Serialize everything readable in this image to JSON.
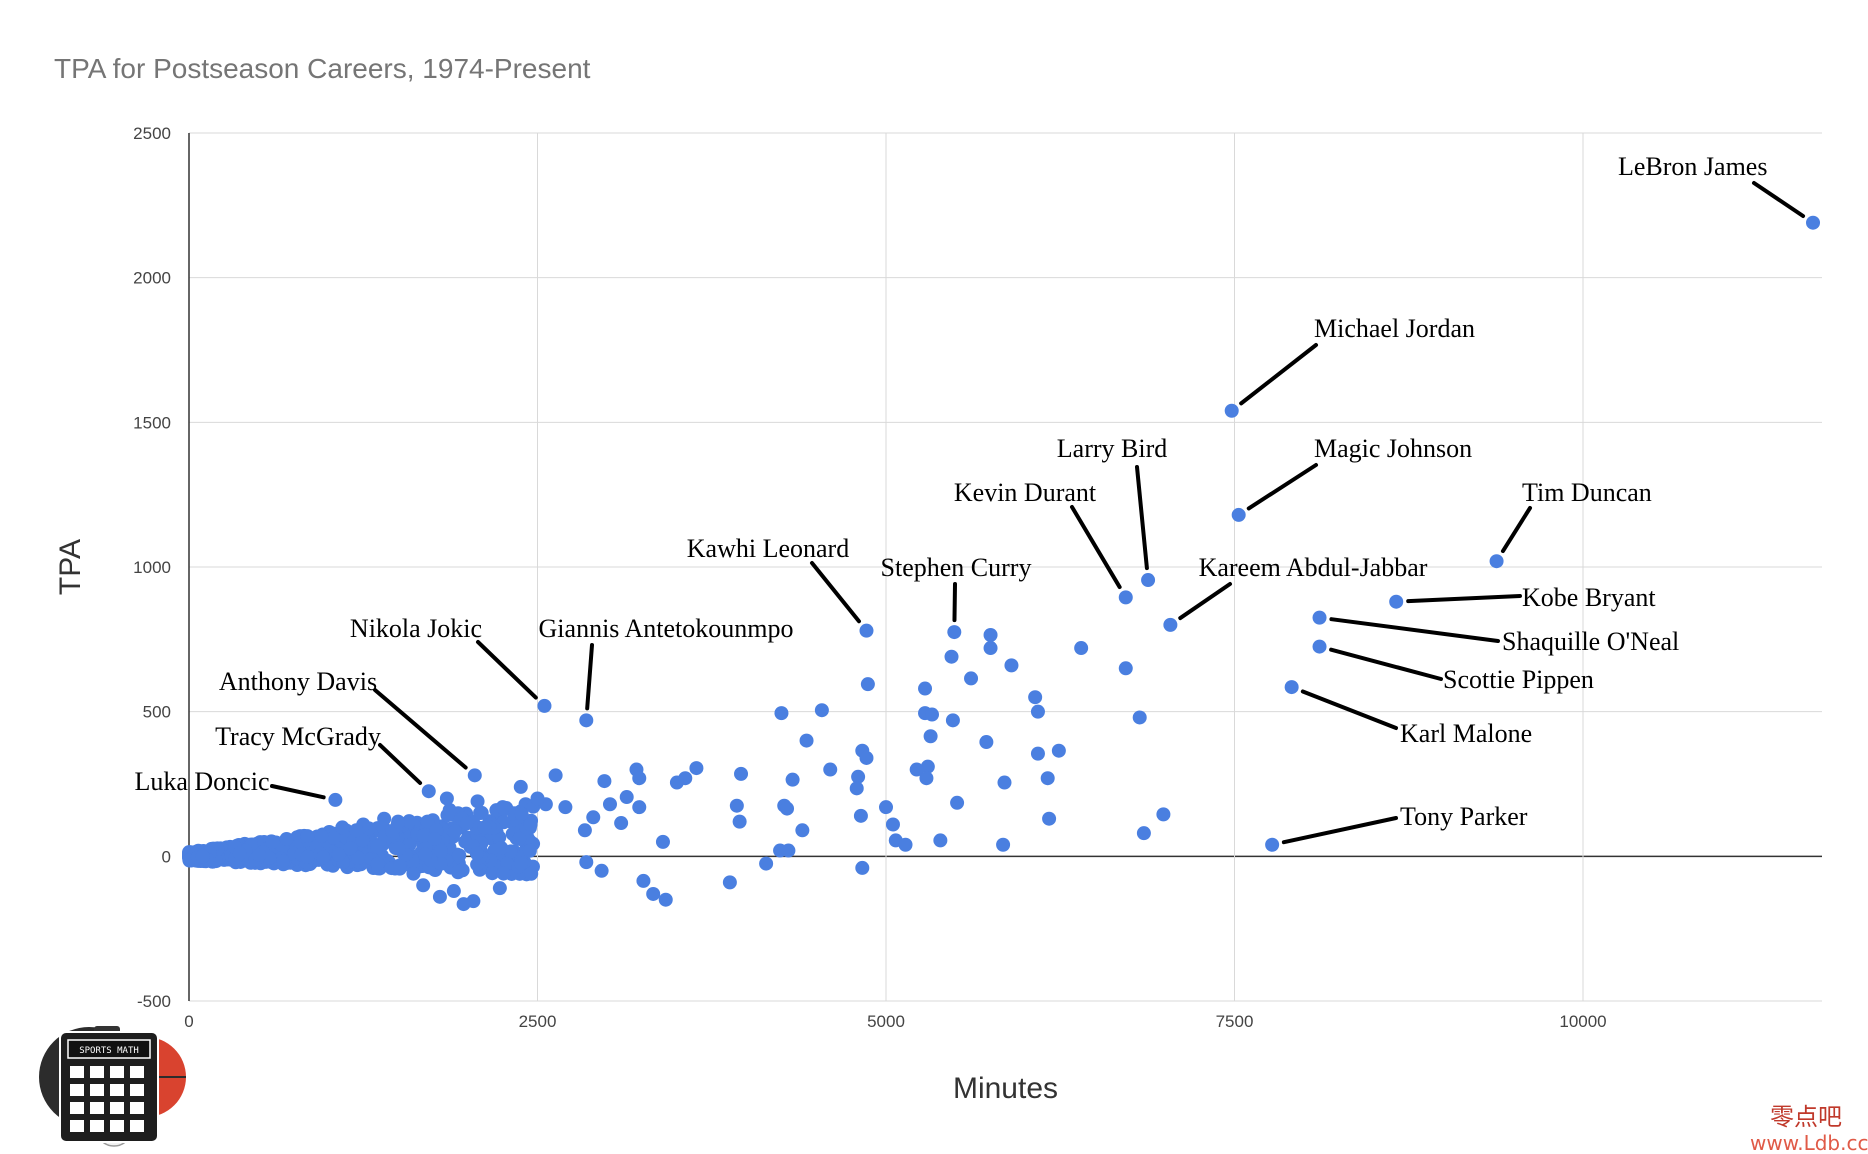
{
  "chart_data": {
    "type": "scatter",
    "title": "TPA for Postseason Careers, 1974-Present",
    "xlabel": "Minutes",
    "ylabel": "TPA",
    "xlim": [
      0,
      11750
    ],
    "ylim": [
      -500,
      2500
    ],
    "xticks": [
      0,
      2500,
      5000,
      7500,
      10000
    ],
    "yticks": [
      -500,
      0,
      500,
      1000,
      1500,
      2000,
      2500
    ],
    "grid": true,
    "color": "#4a7fe0",
    "labeled_points": [
      {
        "name": "LeBron James",
        "x": 11650,
        "y": 2190
      },
      {
        "name": "Michael Jordan",
        "x": 7480,
        "y": 1540
      },
      {
        "name": "Magic Johnson",
        "x": 7530,
        "y": 1180
      },
      {
        "name": "Larry Bird",
        "x": 6880,
        "y": 955
      },
      {
        "name": "Kevin Durant",
        "x": 6720,
        "y": 895
      },
      {
        "name": "Tim Duncan",
        "x": 9380,
        "y": 1020
      },
      {
        "name": "Kareem Abdul-Jabbar",
        "x": 7040,
        "y": 800
      },
      {
        "name": "Kobe Bryant",
        "x": 8660,
        "y": 880
      },
      {
        "name": "Shaquille O'Neal",
        "x": 8110,
        "y": 825
      },
      {
        "name": "Scottie Pippen",
        "x": 8110,
        "y": 725
      },
      {
        "name": "Karl Malone",
        "x": 7910,
        "y": 585
      },
      {
        "name": "Tony Parker",
        "x": 7770,
        "y": 40
      },
      {
        "name": "Stephen Curry",
        "x": 5490,
        "y": 775
      },
      {
        "name": "Kawhi Leonard",
        "x": 4860,
        "y": 780
      },
      {
        "name": "Giannis Antetokounmpo",
        "x": 2850,
        "y": 470
      },
      {
        "name": "Nikola Jokic",
        "x": 2550,
        "y": 520
      },
      {
        "name": "Anthony Davis",
        "x": 2050,
        "y": 280
      },
      {
        "name": "Tracy McGrady",
        "x": 1720,
        "y": 225
      },
      {
        "name": "Luka Doncic",
        "x": 1050,
        "y": 195
      }
    ],
    "other_points": [
      [
        6400,
        720
      ],
      [
        6720,
        650
      ],
      [
        6820,
        480
      ],
      [
        6850,
        80
      ],
      [
        6990,
        145
      ],
      [
        5750,
        765
      ],
      [
        5750,
        720
      ],
      [
        5900,
        660
      ],
      [
        5610,
        615
      ],
      [
        5470,
        690
      ],
      [
        5280,
        580
      ],
      [
        5280,
        495
      ],
      [
        5330,
        490
      ],
      [
        5480,
        470
      ],
      [
        5320,
        415
      ],
      [
        5720,
        395
      ],
      [
        6070,
        550
      ],
      [
        6090,
        500
      ],
      [
        6240,
        365
      ],
      [
        6090,
        355
      ],
      [
        5850,
        255
      ],
      [
        6160,
        270
      ],
      [
        6170,
        130
      ],
      [
        5840,
        40
      ],
      [
        5390,
        55
      ],
      [
        5510,
        185
      ],
      [
        5300,
        310
      ],
      [
        5220,
        300
      ],
      [
        5290,
        270
      ],
      [
        4870,
        595
      ],
      [
        4830,
        365
      ],
      [
        4860,
        340
      ],
      [
        4800,
        275
      ],
      [
        4790,
        235
      ],
      [
        4820,
        140
      ],
      [
        4830,
        -40
      ],
      [
        5000,
        170
      ],
      [
        5050,
        110
      ],
      [
        5070,
        55
      ],
      [
        5140,
        40
      ],
      [
        4600,
        300
      ],
      [
        4540,
        505
      ],
      [
        4430,
        400
      ],
      [
        4250,
        495
      ],
      [
        4270,
        175
      ],
      [
        4290,
        165
      ],
      [
        4330,
        265
      ],
      [
        4400,
        90
      ],
      [
        4240,
        20
      ],
      [
        4300,
        20
      ],
      [
        4140,
        -25
      ],
      [
        3960,
        285
      ],
      [
        3930,
        175
      ],
      [
        3950,
        120
      ],
      [
        3880,
        -90
      ],
      [
        3640,
        305
      ],
      [
        3560,
        270
      ],
      [
        3500,
        255
      ],
      [
        3420,
        -150
      ],
      [
        3330,
        -130
      ],
      [
        3400,
        50
      ],
      [
        3260,
        -85
      ],
      [
        3210,
        300
      ],
      [
        3230,
        270
      ],
      [
        3230,
        170
      ],
      [
        3140,
        205
      ],
      [
        3100,
        115
      ],
      [
        2980,
        260
      ],
      [
        3020,
        180
      ],
      [
        2900,
        135
      ],
      [
        2840,
        90
      ],
      [
        2960,
        -50
      ],
      [
        2850,
        -20
      ],
      [
        2630,
        280
      ],
      [
        2700,
        170
      ],
      [
        2560,
        180
      ],
      [
        2500,
        200
      ],
      [
        2450,
        110
      ],
      [
        2380,
        240
      ],
      [
        2370,
        60
      ],
      [
        2250,
        170
      ],
      [
        2230,
        -110
      ],
      [
        2120,
        100
      ],
      [
        2040,
        -155
      ],
      [
        1970,
        -165
      ],
      [
        2070,
        190
      ],
      [
        2100,
        150
      ],
      [
        1850,
        200
      ],
      [
        1870,
        160
      ],
      [
        1760,
        60
      ],
      [
        1680,
        -100
      ],
      [
        1610,
        -60
      ],
      [
        1900,
        -120
      ],
      [
        1800,
        -140
      ],
      [
        1930,
        -55
      ],
      [
        1400,
        130
      ],
      [
        1500,
        120
      ],
      [
        1250,
        110
      ],
      [
        1200,
        90
      ],
      [
        1100,
        100
      ],
      [
        950,
        70
      ],
      [
        850,
        70
      ],
      [
        700,
        60
      ],
      [
        600,
        50
      ]
    ]
  },
  "logo": {
    "label": "SPORTS MATH"
  },
  "watermark": {
    "cn": "零点吧",
    "url": "www.Ldb.cc"
  }
}
